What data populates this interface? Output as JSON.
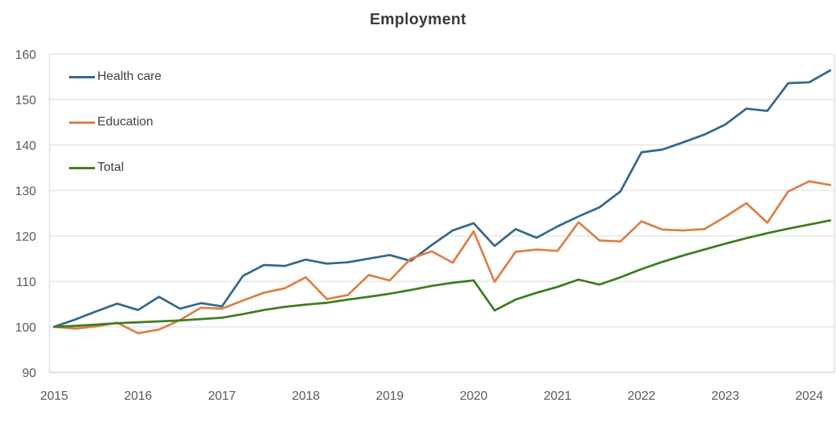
{
  "page_background": "#ffffff",
  "chart_data": {
    "type": "line",
    "title": "Employment",
    "xlabel": "",
    "ylabel": "",
    "x_tick_labels": [
      "2015",
      "2016",
      "2017",
      "2018",
      "2019",
      "2020",
      "2021",
      "2022",
      "2023",
      "2024"
    ],
    "y_tick_labels": [
      "90",
      "100",
      "110",
      "120",
      "130",
      "140",
      "150",
      "160"
    ],
    "ylim": [
      90,
      160
    ],
    "x_start_year": 2015,
    "points_per_year": 4,
    "x_unit": "quarterly",
    "grid": "horizontal",
    "legend_position": "inside-top-left",
    "series": [
      {
        "name": "Health care",
        "color": "#35688C",
        "values": [
          100.0,
          101.6,
          103.4,
          105.1,
          103.7,
          106.6,
          104.0,
          105.2,
          104.5,
          111.2,
          113.6,
          113.4,
          114.8,
          113.9,
          114.2,
          115.0,
          115.8,
          114.5,
          118.0,
          121.2,
          122.8,
          117.8,
          121.5,
          119.6,
          122.1,
          124.3,
          126.3,
          129.8,
          138.4,
          139.0,
          140.6,
          142.3,
          144.5,
          148.0,
          147.5,
          153.6,
          153.8,
          156.4
        ]
      },
      {
        "name": "Education",
        "color": "#DD8047",
        "values": [
          100.0,
          99.6,
          100.1,
          100.9,
          98.6,
          99.4,
          101.5,
          104.2,
          104.0,
          105.8,
          107.5,
          108.5,
          110.9,
          106.1,
          107.0,
          111.4,
          110.2,
          115.0,
          116.6,
          114.1,
          121.0,
          109.9,
          116.5,
          117.0,
          116.7,
          123.0,
          119.0,
          118.8,
          123.2,
          121.4,
          121.2,
          121.5,
          124.2,
          127.2,
          122.9,
          129.8,
          132.0,
          131.2
        ]
      },
      {
        "name": "Total",
        "color": "#3E7D1E",
        "values": [
          100.0,
          100.2,
          100.5,
          100.8,
          101.0,
          101.2,
          101.4,
          101.7,
          102.0,
          102.8,
          103.7,
          104.4,
          104.9,
          105.3,
          106.0,
          106.6,
          107.3,
          108.1,
          109.0,
          109.7,
          110.2,
          103.6,
          106.0,
          107.5,
          108.8,
          110.4,
          109.3,
          110.9,
          112.7,
          114.3,
          115.7,
          117.0,
          118.3,
          119.5,
          120.6,
          121.6,
          122.5,
          123.4
        ]
      }
    ],
    "colors": {
      "gridline": "#d9d9d9",
      "plot_border": "#d4d4d4",
      "bottom_axis": "#bfbfbf",
      "tick_label": "#595959",
      "title": "#3b3b3b"
    }
  }
}
